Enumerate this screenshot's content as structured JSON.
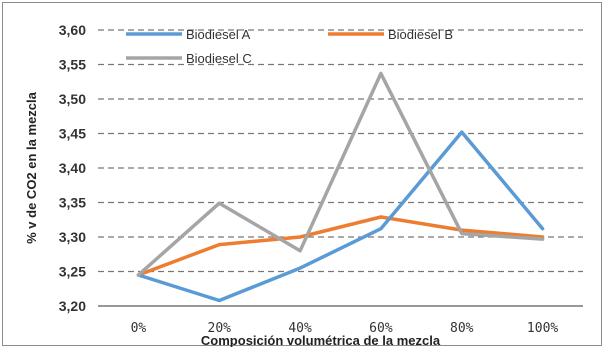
{
  "chart_data": {
    "type": "line",
    "xlabel": "Composición volumétrica de la mezcla",
    "ylabel": "% v de CO2 en la mezcla",
    "categories": [
      "0%",
      "20%",
      "40%",
      "60%",
      "80%",
      "100%"
    ],
    "ylim": [
      3.2,
      3.6
    ],
    "yticks": [
      "3,20",
      "3,25",
      "3,30",
      "3,35",
      "3,40",
      "3,45",
      "3,50",
      "3,55",
      "3,60"
    ],
    "grid": "horizontal dashed",
    "legend_position": "top-left",
    "series": [
      {
        "name": "Biodiesel A",
        "color": "#5b9bd5",
        "values": [
          3.245,
          3.208,
          3.255,
          3.312,
          3.452,
          3.312
        ]
      },
      {
        "name": "Biodiesel B",
        "color": "#ed7d31",
        "values": [
          3.245,
          3.289,
          3.3,
          3.329,
          3.31,
          3.3
        ]
      },
      {
        "name": "Biodiesel C",
        "color": "#a5a5a5",
        "values": [
          3.245,
          3.349,
          3.28,
          3.537,
          3.305,
          3.297
        ]
      }
    ]
  }
}
